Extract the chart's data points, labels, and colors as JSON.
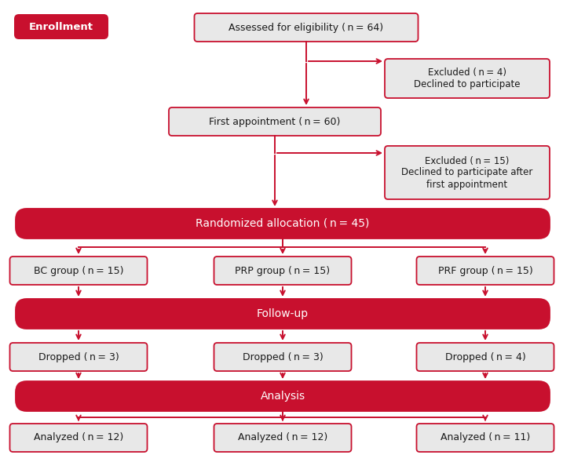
{
  "bg_color": "#ffffff",
  "red": "#C8102E",
  "gray_fill": "#E8E8E8",
  "text_dark": "#1a1a1a",
  "text_white": "#ffffff",
  "enrollment_label": "Enrollment",
  "boxes": {
    "eligibility": "Assessed for eligibility ( n = 64)",
    "excluded1": "Excluded ( n = 4)\nDeclined to participate",
    "first_appt": "First appointment ( n = 60)",
    "excluded2": "Excluded ( n = 15)\nDeclined to participate after\nfirst appointment",
    "randomized": "Randomized allocation ( n = 45)",
    "bc_group": "BC group ( n = 15)",
    "prp_group": "PRP group ( n = 15)",
    "prf_group": "PRF group ( n = 15)",
    "followup": "Follow-up",
    "dropped1": "Dropped ( n = 3)",
    "dropped2": "Dropped ( n = 3)",
    "dropped3": "Dropped ( n = 4)",
    "analysis": "Analysis",
    "analyzed1": "Analyzed ( n = 12)",
    "analyzed2": "Analyzed ( n = 12)",
    "analyzed3": "Analyzed ( n = 11)"
  },
  "layout": {
    "fig_w": 7.17,
    "fig_h": 5.8,
    "dpi": 100,
    "xmin": 0,
    "xmax": 717,
    "ymin": 0,
    "ymax": 580
  }
}
